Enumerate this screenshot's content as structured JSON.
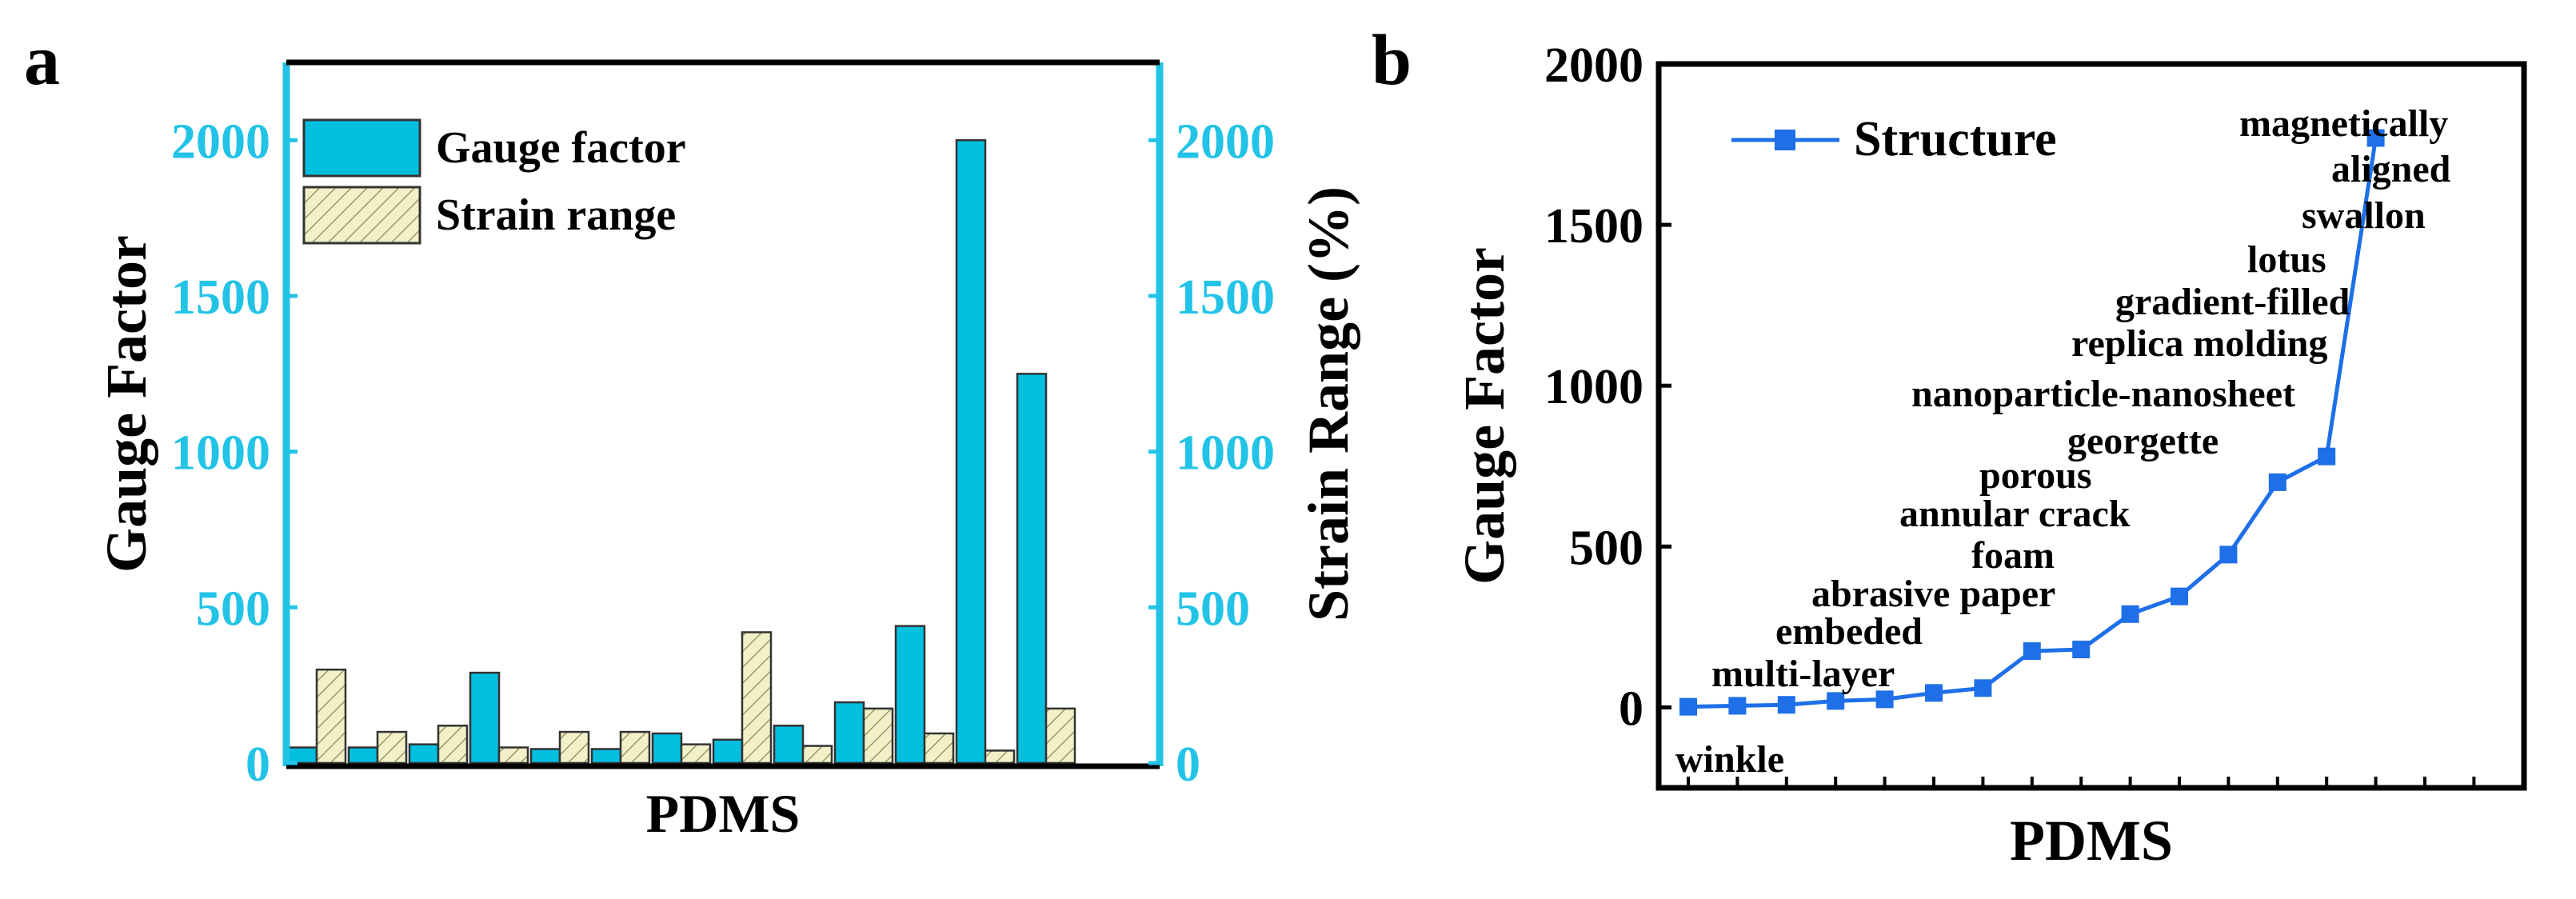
{
  "chart_data": [
    {
      "panel_label": "a",
      "type": "bar",
      "xlabel": "PDMS",
      "ylabel_left": "Gauge Factor",
      "ylabel_right": "Strain Range (%)",
      "ylim": [
        0,
        2250
      ],
      "yticks": [
        0,
        500,
        1000,
        1500,
        2000
      ],
      "legend": {
        "position": "top-left",
        "entries": [
          "Gauge factor",
          "Strain range"
        ]
      },
      "series": [
        {
          "name": "Gauge factor",
          "color": "#00BFDF",
          "values": [
            50,
            50,
            60,
            290,
            45,
            45,
            95,
            75,
            120,
            195,
            440,
            2000,
            1250
          ]
        },
        {
          "name": "Strain range",
          "color": "#F2F0C8",
          "hatch": true,
          "values": [
            300,
            100,
            120,
            50,
            100,
            100,
            60,
            420,
            55,
            175,
            95,
            40,
            175
          ]
        }
      ]
    },
    {
      "panel_label": "b",
      "type": "line",
      "xlabel": "PDMS",
      "ylabel": "Gauge Factor",
      "ylim": [
        -250,
        2000
      ],
      "yticks": [
        0,
        500,
        1000,
        1500,
        2000
      ],
      "legend": {
        "position": "top-left",
        "entries": [
          "Structure"
        ]
      },
      "series": [
        {
          "name": "Structure",
          "color": "#1E6FE8",
          "marker": "square",
          "values": [
            2,
            5,
            8,
            20,
            25,
            45,
            60,
            175,
            180,
            290,
            345,
            475,
            700,
            780,
            1770
          ]
        }
      ],
      "annotations": [
        "winkle",
        "multi-layer",
        "embeded",
        "abrasive paper",
        "foam",
        "annular crack",
        "porous",
        "georgette",
        "nanoparticle-nanosheet",
        "replica molding",
        "gradient-filled",
        "lotus",
        "swallon",
        "aligned",
        "magnetically"
      ]
    }
  ]
}
